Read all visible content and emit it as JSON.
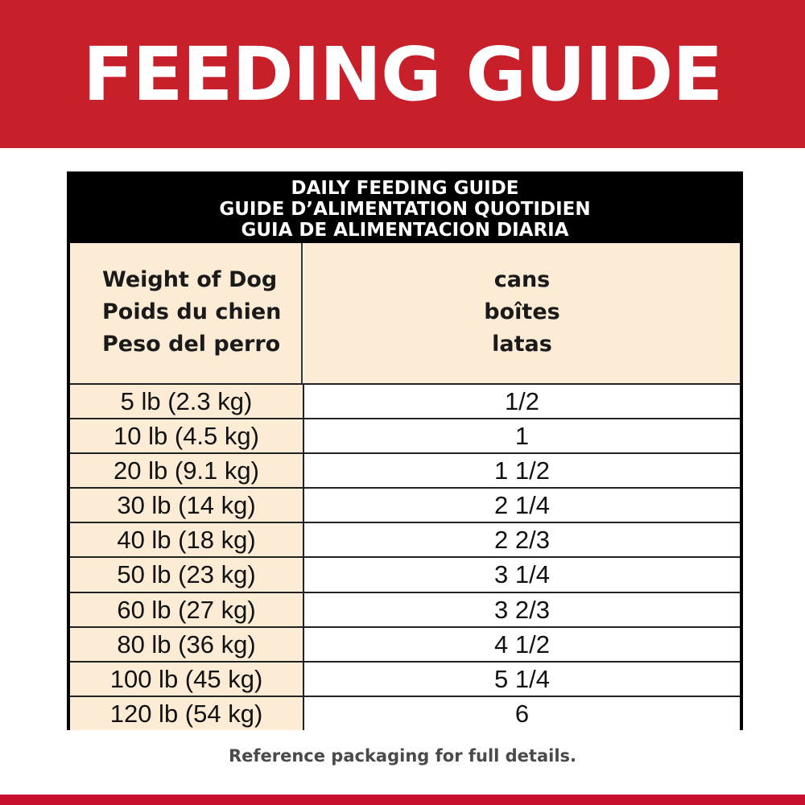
{
  "banner": {
    "title": "FEEDING GUIDE",
    "color": "#c8202b"
  },
  "table": {
    "header_lines": [
      "DAILY FEEDING GUIDE",
      "GUIDE D’ALIMENTATION QUOTIDIEN",
      "GUIA DE ALIMENTACION DIARIA"
    ],
    "weight_header": [
      "Weight of Dog",
      "Poids du chien",
      "Peso del perro"
    ],
    "amount_header": [
      "cans",
      "boîtes",
      "latas"
    ],
    "rows": [
      {
        "weight": "5 lb (2.3 kg)",
        "cans": "1/2"
      },
      {
        "weight": "10 lb (4.5 kg)",
        "cans": "1"
      },
      {
        "weight": "20 lb (9.1 kg)",
        "cans": "1 1/2"
      },
      {
        "weight": "30 lb (14 kg)",
        "cans": "2 1/4"
      },
      {
        "weight": "40 lb (18 kg)",
        "cans": "2 2/3"
      },
      {
        "weight": "50 lb (23 kg)",
        "cans": "3 1/4"
      },
      {
        "weight": "60 lb (27 kg)",
        "cans": "3 2/3"
      },
      {
        "weight": "80 lb (36 kg)",
        "cans": "4 1/2"
      },
      {
        "weight": "100 lb (45 kg)",
        "cans": "5 1/4"
      },
      {
        "weight": "120 lb (54 kg)",
        "cans": "6"
      }
    ]
  },
  "footer": {
    "note": "Reference packaging for full details."
  }
}
